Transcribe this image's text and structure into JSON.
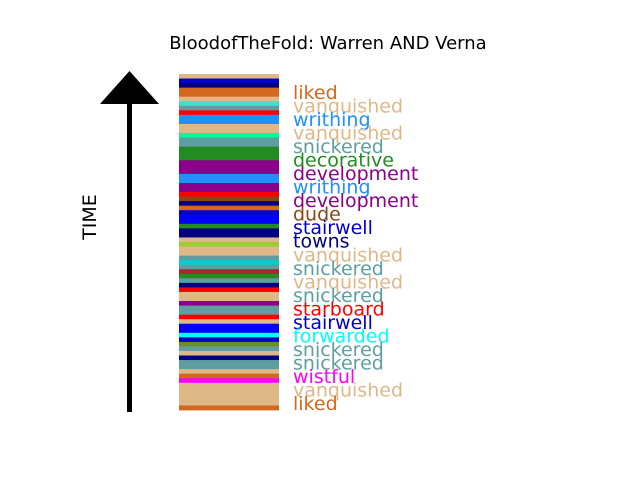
{
  "chart_data": {
    "type": "bar",
    "title": "BloodofTheFold: Warren AND Verna",
    "ylabel": "TIME",
    "stripes": [
      {
        "color": "#deb887"
      },
      {
        "color": "#0000cd"
      },
      {
        "color": "#000080"
      },
      {
        "color": "#d2691e"
      },
      {
        "color": "#d2691e"
      },
      {
        "color": "#deb887"
      },
      {
        "color": "#40e0d0"
      },
      {
        "color": "#5f9ea0"
      },
      {
        "color": "#ff0000"
      },
      {
        "color": "#1e90ff"
      },
      {
        "color": "#1e90ff"
      },
      {
        "color": "#deb887"
      },
      {
        "color": "#deb887"
      },
      {
        "color": "#00fa9a"
      },
      {
        "color": "#5f9ea0"
      },
      {
        "color": "#5f9ea0"
      },
      {
        "color": "#228b22"
      },
      {
        "color": "#228b22"
      },
      {
        "color": "#228b22"
      },
      {
        "color": "#8b008b"
      },
      {
        "color": "#8b008b"
      },
      {
        "color": "#8b008b"
      },
      {
        "color": "#1e90ff"
      },
      {
        "color": "#1e90ff"
      },
      {
        "color": "#8b008b"
      },
      {
        "color": "#8b008b"
      },
      {
        "color": "#ff0000"
      },
      {
        "color": "#8b4513"
      },
      {
        "color": "#000080"
      },
      {
        "color": "#d2691e"
      },
      {
        "color": "#0000cd"
      },
      {
        "color": "#0000ff"
      },
      {
        "color": "#0000ff"
      },
      {
        "color": "#228b22"
      },
      {
        "color": "#000080"
      },
      {
        "color": "#000080"
      },
      {
        "color": "#deb887"
      },
      {
        "color": "#9acd32"
      },
      {
        "color": "#deb887"
      },
      {
        "color": "#deb887"
      },
      {
        "color": "#5f9ea0"
      },
      {
        "color": "#00ced1"
      },
      {
        "color": "#5f9ea0"
      },
      {
        "color": "#a52a2a"
      },
      {
        "color": "#228b22"
      },
      {
        "color": "#5f9ea0"
      },
      {
        "color": "#000080"
      },
      {
        "color": "#ff0000"
      },
      {
        "color": "#deb887"
      },
      {
        "color": "#deb887"
      },
      {
        "color": "#8b008b"
      },
      {
        "color": "#5f9ea0"
      },
      {
        "color": "#5f9ea0"
      },
      {
        "color": "#ff0000"
      },
      {
        "color": "#deb887"
      },
      {
        "color": "#0000ff"
      },
      {
        "color": "#0000ff"
      },
      {
        "color": "#00ffff"
      },
      {
        "color": "#0000cd"
      },
      {
        "color": "#6b8e23"
      },
      {
        "color": "#5f9ea0"
      },
      {
        "color": "#deb887"
      },
      {
        "color": "#000080"
      },
      {
        "color": "#5f9ea0"
      },
      {
        "color": "#5f9ea0"
      },
      {
        "color": "#deb887"
      },
      {
        "color": "#d2691e"
      },
      {
        "color": "#ff00ff"
      },
      {
        "color": "#deb887"
      },
      {
        "color": "#deb887"
      },
      {
        "color": "#deb887"
      },
      {
        "color": "#deb887"
      },
      {
        "color": "#deb887"
      },
      {
        "color": "#d2691e"
      }
    ],
    "labels": [
      {
        "text": "liked",
        "color": "#d2691e"
      },
      {
        "text": "vanquished",
        "color": "#deb887"
      },
      {
        "text": "writhing",
        "color": "#1e90ff"
      },
      {
        "text": "vanquished",
        "color": "#deb887"
      },
      {
        "text": "snickered",
        "color": "#5f9ea0"
      },
      {
        "text": "decorative",
        "color": "#228b22"
      },
      {
        "text": "development",
        "color": "#8b008b"
      },
      {
        "text": "writhing",
        "color": "#1e90ff"
      },
      {
        "text": "development",
        "color": "#8b008b"
      },
      {
        "text": "dude",
        "color": "#8b4513"
      },
      {
        "text": "stairwell",
        "color": "#0000cd"
      },
      {
        "text": "towns",
        "color": "#000080"
      },
      {
        "text": "vanquished",
        "color": "#deb887"
      },
      {
        "text": "snickered",
        "color": "#5f9ea0"
      },
      {
        "text": "vanquished",
        "color": "#deb887"
      },
      {
        "text": "snickered",
        "color": "#5f9ea0"
      },
      {
        "text": "starboard",
        "color": "#ff0000"
      },
      {
        "text": "stairwell",
        "color": "#0000cd"
      },
      {
        "text": "forwarded",
        "color": "#00ffff"
      },
      {
        "text": "snickered",
        "color": "#5f9ea0"
      },
      {
        "text": "snickered",
        "color": "#5f9ea0"
      },
      {
        "text": "wistful",
        "color": "#ff00ff"
      },
      {
        "text": "vanquished",
        "color": "#deb887"
      },
      {
        "text": "liked",
        "color": "#d2691e"
      }
    ]
  }
}
